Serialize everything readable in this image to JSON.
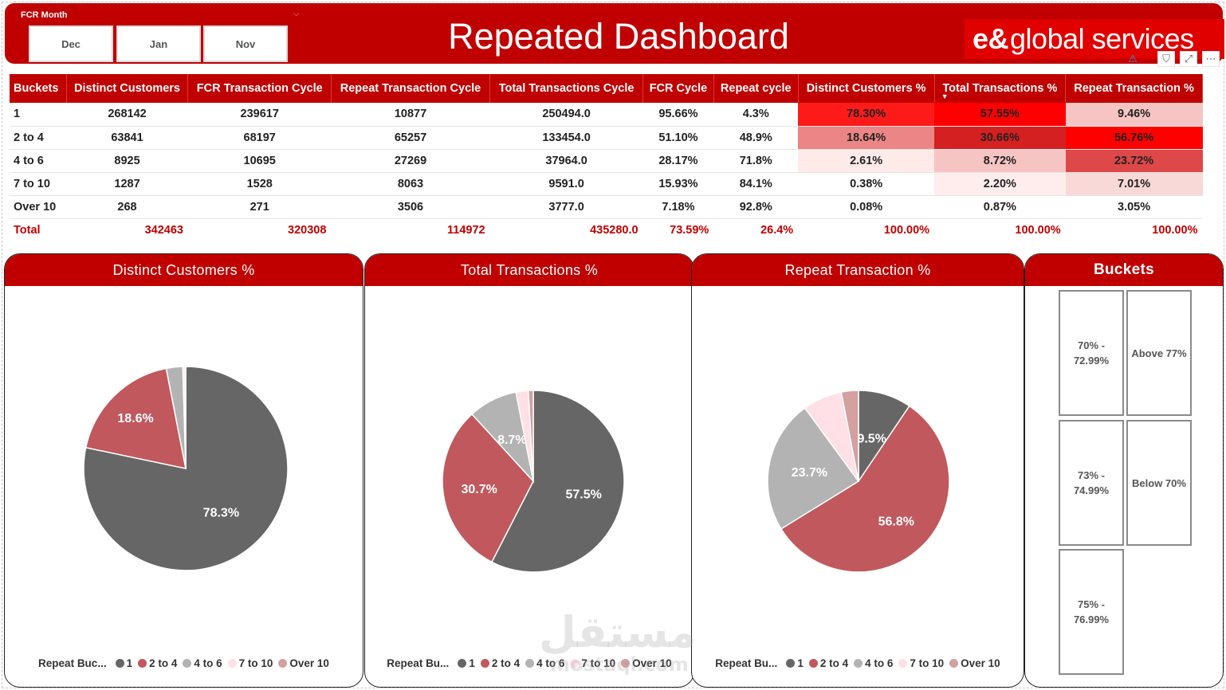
{
  "header": {
    "slicer_title": "FCR Month",
    "slicer_options": [
      "Dec",
      "Jan",
      "Nov"
    ],
    "title": "Repeated Dashboard",
    "logo_mark": "e&",
    "logo_text": "global services"
  },
  "toolbar_icons": [
    "warning-icon",
    "filter-icon",
    "focus-mode-icon",
    "more-options-icon"
  ],
  "table": {
    "columns": [
      "Buckets",
      "Distinct Customers",
      "FCR Transaction Cycle",
      "Repeat Transaction Cycle",
      "Total Transactions Cycle",
      "FCR Cycle",
      "Repeat cycle",
      "Distinct Customers %",
      "Total Transactions %",
      "Repeat Transaction %"
    ],
    "sort_indicator": "▼",
    "rows": [
      [
        "1",
        "268142",
        "239617",
        "10877",
        "250494.0",
        "95.66%",
        "4.3%",
        "78.30%",
        "57.55%",
        "9.46%"
      ],
      [
        "2 to 4",
        "63841",
        "68197",
        "65257",
        "133454.0",
        "51.10%",
        "48.9%",
        "18.64%",
        "30.66%",
        "56.76%"
      ],
      [
        "4 to 6",
        "8925",
        "10695",
        "27269",
        "37964.0",
        "28.17%",
        "71.8%",
        "2.61%",
        "8.72%",
        "23.72%"
      ],
      [
        "7 to 10",
        "1287",
        "1528",
        "8063",
        "9591.0",
        "15.93%",
        "84.1%",
        "0.38%",
        "2.20%",
        "7.01%"
      ],
      [
        "Over 10",
        "268",
        "271",
        "3506",
        "3777.0",
        "7.18%",
        "92.8%",
        "0.08%",
        "0.87%",
        "3.05%"
      ]
    ],
    "total": [
      "Total",
      "342463",
      "320308",
      "114972",
      "435280.0",
      "73.59%",
      "26.4%",
      "100.00%",
      "100.00%",
      "100.00%"
    ]
  },
  "colors": {
    "brand_red": "#c00000",
    "heat": [
      "#ffffff",
      "#ffeaea",
      "#f7c4c4",
      "#ec8585",
      "#d94545",
      "#ff0000"
    ]
  },
  "chart_data": [
    {
      "type": "pie",
      "title": "Distinct Customers %",
      "legend_title": "Repeat Buc...",
      "categories": [
        "1",
        "2 to 4",
        "4 to 6",
        "7 to 10",
        "Over 10"
      ],
      "values": [
        78.3,
        18.64,
        2.61,
        0.38,
        0.08
      ],
      "data_labels": [
        "78.3%",
        "18.6%",
        "",
        "",
        ""
      ],
      "colors": [
        "#666666",
        "#c0585d",
        "#b3b3b3",
        "#ffe0e6",
        "#d4a0a0"
      ]
    },
    {
      "type": "pie",
      "title": "Total Transactions %",
      "legend_title": "Repeat Bu...",
      "categories": [
        "1",
        "2 to 4",
        "4 to 6",
        "7 to 10",
        "Over 10"
      ],
      "values": [
        57.55,
        30.66,
        8.72,
        2.2,
        0.87
      ],
      "data_labels": [
        "57.5%",
        "30.7%",
        "8.7%",
        "",
        ""
      ],
      "colors": [
        "#666666",
        "#c0585d",
        "#b3b3b3",
        "#ffe0e6",
        "#d4a0a0"
      ]
    },
    {
      "type": "pie",
      "title": "Repeat Transaction %",
      "legend_title": "Repeat Bu...",
      "categories": [
        "1",
        "2 to 4",
        "4 to 6",
        "7 to 10",
        "Over 10"
      ],
      "values": [
        9.46,
        56.76,
        23.72,
        7.01,
        3.05
      ],
      "data_labels": [
        "9.5%",
        "56.8%",
        "23.7%",
        "",
        ""
      ],
      "colors": [
        "#666666",
        "#c0585d",
        "#b3b3b3",
        "#ffe0e6",
        "#d4a0a0"
      ]
    }
  ],
  "buckets_panel": {
    "title": "Buckets",
    "tiles": [
      "70% - 72.99%",
      "Above 77%",
      "73% - 74.99%",
      "Below 70%",
      "75% - 76.99%"
    ]
  },
  "watermark": {
    "text": "مستقل",
    "subtext": "mostaql.com"
  }
}
